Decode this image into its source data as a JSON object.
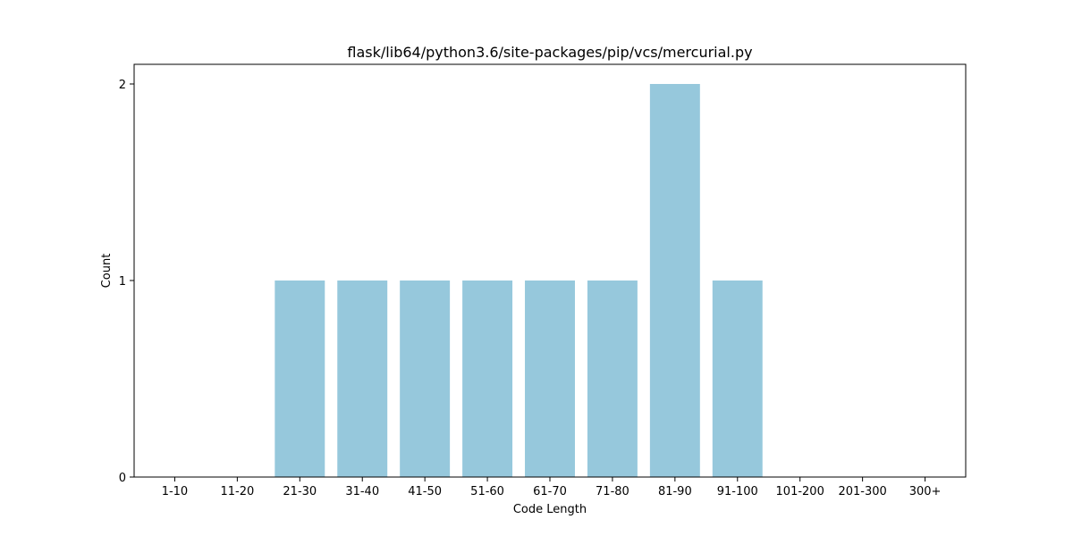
{
  "chart_data": {
    "type": "bar",
    "title": "flask/lib64/python3.6/site-packages/pip/vcs/mercurial.py",
    "xlabel": "Code Length",
    "ylabel": "Count",
    "categories": [
      "1-10",
      "11-20",
      "21-30",
      "31-40",
      "41-50",
      "51-60",
      "61-70",
      "71-80",
      "81-90",
      "91-100",
      "101-200",
      "201-300",
      "300+"
    ],
    "values": [
      0,
      0,
      1,
      1,
      1,
      1,
      1,
      1,
      2,
      1,
      0,
      0,
      0
    ],
    "ylim": [
      0,
      2.1
    ],
    "yticks": [
      0,
      1,
      2
    ],
    "grid": false,
    "legend": "none",
    "bar_color": "#96c8dc"
  }
}
